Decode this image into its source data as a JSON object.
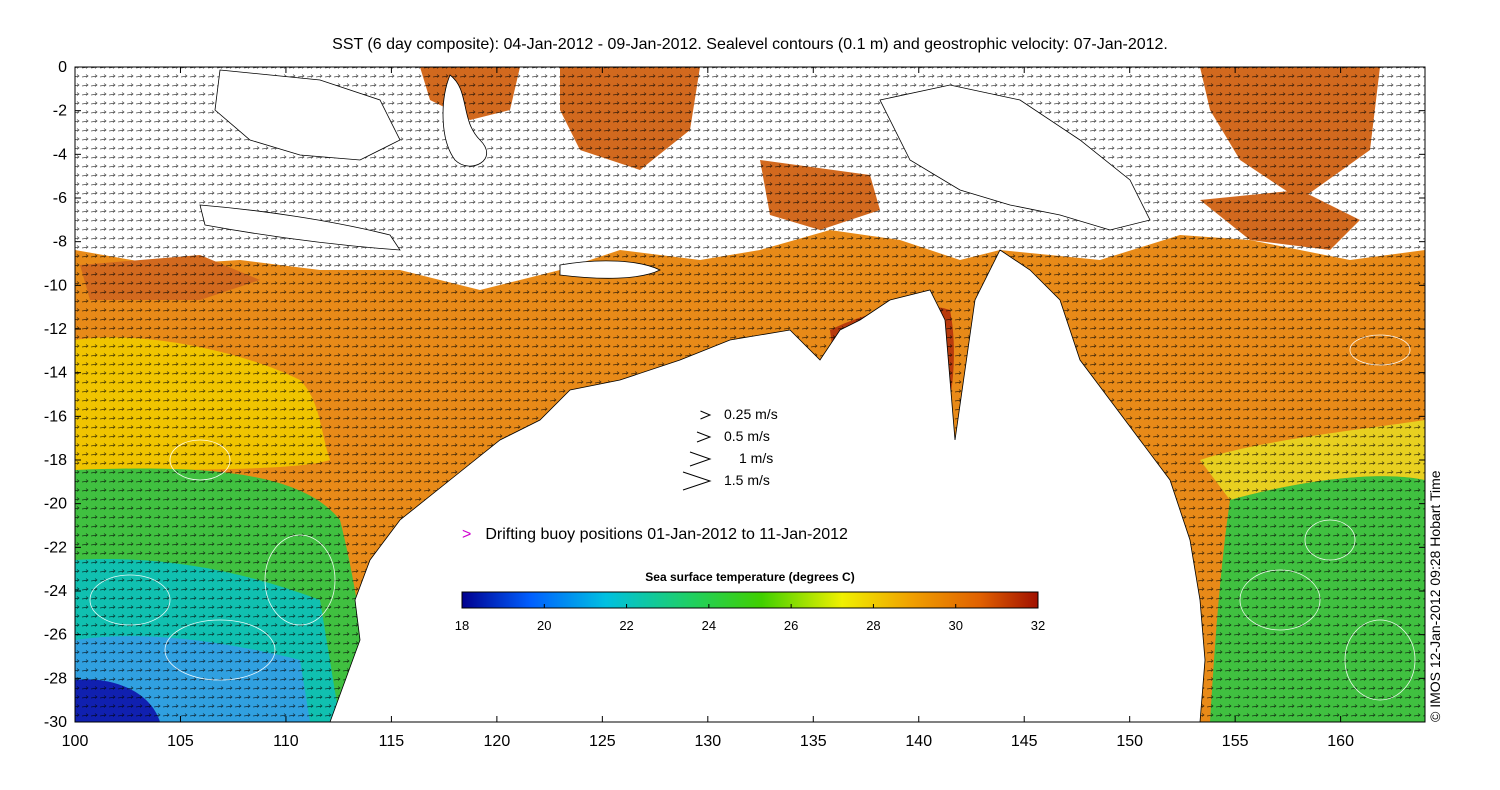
{
  "title": "SST (6 day composite): 04-Jan-2012 - 09-Jan-2012. Sealevel contours (0.1 m) and geostrophic velocity: 07-Jan-2012.",
  "credit": "© IMOS 12-Jan-2012 09:28 Hobart Time",
  "map": {
    "lon_range": [
      100,
      164
    ],
    "lat_range": [
      -30,
      0
    ],
    "x_ticks": [
      "100",
      "105",
      "110",
      "115",
      "120",
      "125",
      "130",
      "135",
      "140",
      "145",
      "150",
      "155",
      "160"
    ],
    "y_ticks": [
      "0",
      "-2",
      "-4",
      "-6",
      "-8",
      "-10",
      "-12",
      "-14",
      "-16",
      "-18",
      "-20",
      "-22",
      "-24",
      "-26",
      "-28",
      "-30"
    ],
    "land_color": "#ffffff",
    "coastline_color": "#000000",
    "contour_color": "#ffffff",
    "vector_color": "#000000"
  },
  "velocity_scale": {
    "entries": [
      {
        "label": "0.25 m/s",
        "speed": 0.25
      },
      {
        "label": "0.5 m/s",
        "speed": 0.5
      },
      {
        "label": "1 m/s",
        "speed": 1
      },
      {
        "label": "1.5 m/s",
        "speed": 1.5
      }
    ]
  },
  "buoy_legend": {
    "marker": ">",
    "marker_color": "#d000d0",
    "label": "Drifting buoy positions 01-Jan-2012 to 11-Jan-2012"
  },
  "colorbar": {
    "title": "Sea surface temperature (degrees C)",
    "min": 18,
    "max": 32,
    "ticks": [
      "18",
      "20",
      "22",
      "24",
      "26",
      "28",
      "30",
      "32"
    ],
    "colors": [
      "#00008f",
      "#0060ff",
      "#00c0e0",
      "#20d060",
      "#40d000",
      "#f0f000",
      "#f0a000",
      "#e06000",
      "#a01000"
    ]
  }
}
